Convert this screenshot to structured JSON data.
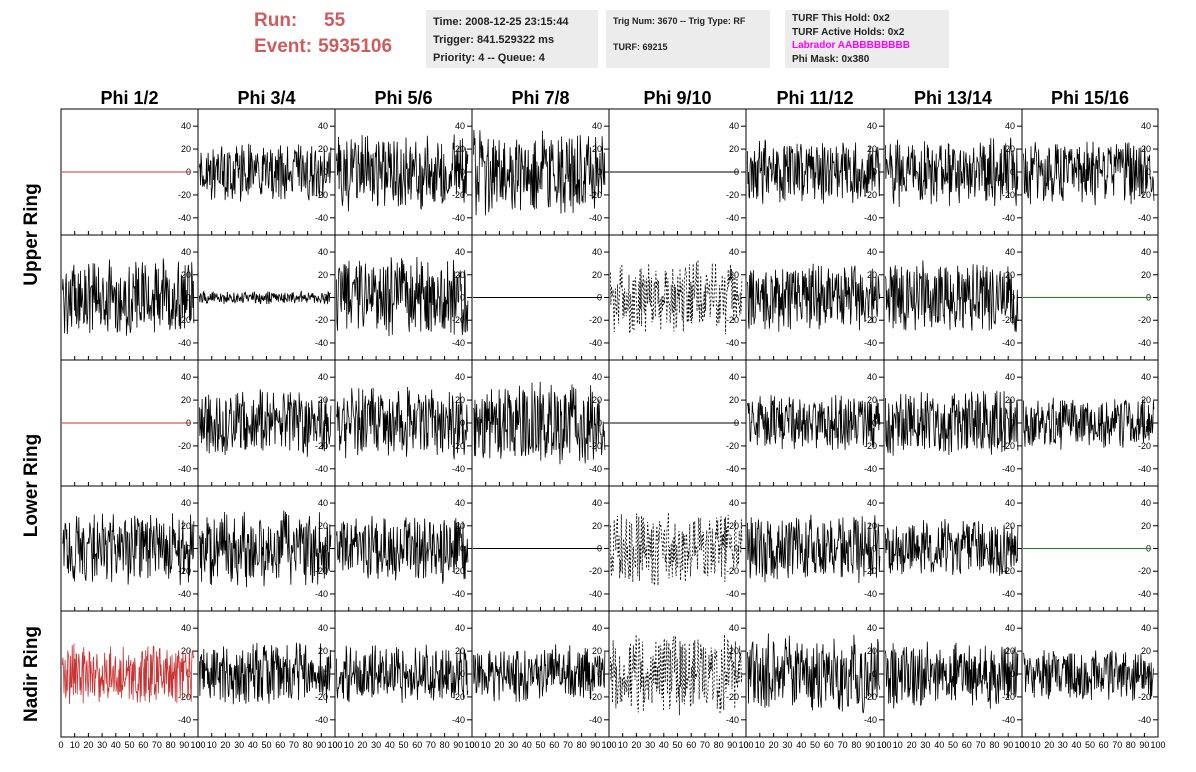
{
  "header": {
    "run_label": "Run:",
    "run_value": "55",
    "event_label": "Event:",
    "event_value": "5935106"
  },
  "info_time": {
    "lines": [
      "Time: 2008-12-25 23:15:44",
      "Trigger: 841.529322 ms",
      "Priority: 4 -- Queue: 4"
    ]
  },
  "info_trig": {
    "line1": "Trig Num: 3670 -- Trig Type: RF",
    "line2": "TURF: 69215"
  },
  "info_turf": {
    "hold": "TURF This Hold: 0x2",
    "active": "TURF Active Holds: 0x2",
    "labrador": "Labrador AABBBBBBBB",
    "labrador_color": "#ff00ff",
    "phi_mask": "Phi Mask: 0x380"
  },
  "colors": {
    "trace_default": "#000000",
    "trace_masked": "#c83232",
    "trace_dead": "#228b22",
    "info_bg": "#ececec",
    "run_text": "#cd5c5c"
  },
  "chart_data": {
    "type": "line",
    "columns": [
      "Phi 1/2",
      "Phi 3/4",
      "Phi 5/6",
      "Phi 7/8",
      "Phi 9/10",
      "Phi 11/12",
      "Phi 13/14",
      "Phi 15/16"
    ],
    "rows": [
      "Upper Ring",
      "Upper Ring",
      "Lower Ring",
      "Lower Ring",
      "Nadir Ring"
    ],
    "row_titles": [
      "Upper Ring",
      "Lower Ring",
      "Nadir Ring"
    ],
    "xlim": [
      0,
      100
    ],
    "ylim": [
      -55,
      55
    ],
    "y_ticks": [
      -40,
      -20,
      0,
      20,
      40
    ],
    "y_tick_labels": [
      "-40",
      "-20",
      "0",
      "20",
      "40"
    ],
    "x_ticks": [
      0,
      10,
      20,
      30,
      40,
      50,
      60,
      70,
      80,
      90,
      100
    ],
    "x_tick_labels": [
      "0",
      "10",
      "20",
      "30",
      "40",
      "50",
      "60",
      "70",
      "80",
      "90",
      "100"
    ],
    "panels": [
      [
        {
          "style": "flat",
          "color": "masked"
        },
        {
          "style": "noisy",
          "amp": 22
        },
        {
          "style": "noisy",
          "amp": 30
        },
        {
          "style": "noisy",
          "amp": 32
        },
        {
          "style": "flat",
          "color": "default"
        },
        {
          "style": "noisy",
          "amp": 24
        },
        {
          "style": "noisy",
          "amp": 26
        },
        {
          "style": "noisy",
          "amp": 25
        }
      ],
      [
        {
          "style": "noisy",
          "amp": 30
        },
        {
          "style": "noisy",
          "amp": 5
        },
        {
          "style": "noisy",
          "amp": 32
        },
        {
          "style": "flat",
          "color": "default"
        },
        {
          "style": "dashed",
          "amp": 28
        },
        {
          "style": "noisy",
          "amp": 26
        },
        {
          "style": "noisy",
          "amp": 28
        },
        {
          "style": "flat",
          "color": "dead"
        }
      ],
      [
        {
          "style": "flat",
          "color": "masked"
        },
        {
          "style": "noisy",
          "amp": 26
        },
        {
          "style": "noisy",
          "amp": 28
        },
        {
          "style": "noisy",
          "amp": 32
        },
        {
          "style": "flat",
          "color": "default"
        },
        {
          "style": "noisy",
          "amp": 22
        },
        {
          "style": "noisy",
          "amp": 26
        },
        {
          "style": "noisy",
          "amp": 20
        }
      ],
      [
        {
          "style": "noisy",
          "amp": 28
        },
        {
          "style": "noisy",
          "amp": 30
        },
        {
          "style": "noisy",
          "amp": 26
        },
        {
          "style": "flat",
          "color": "default"
        },
        {
          "style": "dashed",
          "amp": 28
        },
        {
          "style": "noisy",
          "amp": 26
        },
        {
          "style": "noisy",
          "amp": 22
        },
        {
          "style": "flat",
          "color": "dead"
        }
      ],
      [
        {
          "style": "noisy",
          "amp": 24,
          "color": "masked"
        },
        {
          "style": "noisy",
          "amp": 24
        },
        {
          "style": "noisy",
          "amp": 22
        },
        {
          "style": "noisy",
          "amp": 22
        },
        {
          "style": "dashed",
          "amp": 30
        },
        {
          "style": "noisy",
          "amp": 30
        },
        {
          "style": "noisy",
          "amp": 26
        },
        {
          "style": "noisy",
          "amp": 20
        }
      ]
    ]
  }
}
